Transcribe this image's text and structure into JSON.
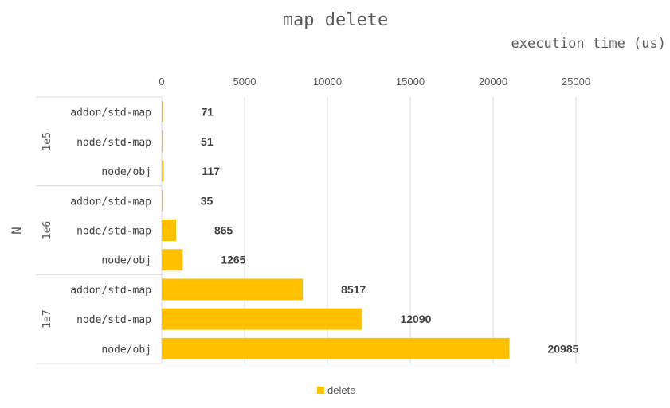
{
  "chart_data": {
    "type": "bar",
    "orientation": "horizontal",
    "title": "map delete",
    "xlabel": "execution time (us)",
    "ylabel": "N",
    "xlim": [
      0,
      25000
    ],
    "xticks": [
      "0",
      "5000",
      "10000",
      "15000",
      "20000",
      "25000"
    ],
    "grid": true,
    "legend_position": "bottom",
    "groups": [
      {
        "label": "1e5",
        "categories": [
          "addon/std-map",
          "node/std-map",
          "node/obj"
        ],
        "values": [
          71,
          51,
          117
        ],
        "value_labels": [
          "71",
          "51",
          "117"
        ]
      },
      {
        "label": "1e6",
        "categories": [
          "addon/std-map",
          "node/std-map",
          "node/obj"
        ],
        "values": [
          35,
          865,
          1265
        ],
        "value_labels": [
          "35",
          "865",
          "1265"
        ]
      },
      {
        "label": "1e7",
        "categories": [
          "addon/std-map",
          "node/std-map",
          "node/obj"
        ],
        "values": [
          8517,
          12090,
          20985
        ],
        "value_labels": [
          "8517",
          "12090",
          "20985"
        ]
      }
    ],
    "series": [
      {
        "name": "delete",
        "color": "#ffc000"
      }
    ]
  }
}
